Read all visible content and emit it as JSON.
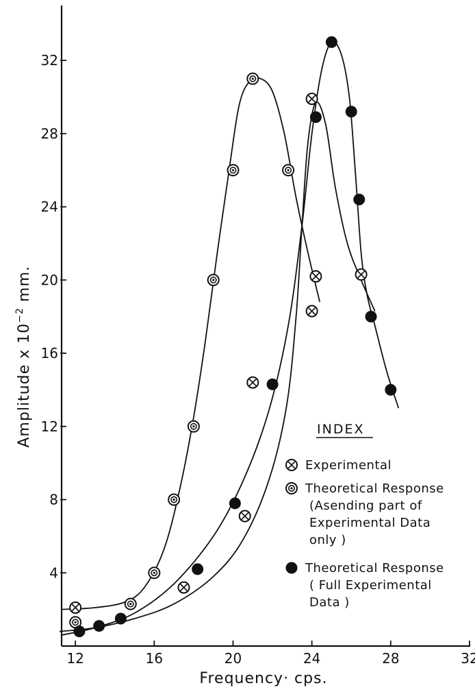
{
  "chart_data": {
    "type": "scatter",
    "title": "",
    "xlabel": "Frequency· cps.",
    "ylabel": "Amplitude x 10",
    "ylabel_exponent": "−2",
    "ylabel_unit": " mm.",
    "xlim": [
      11.3,
      32
    ],
    "ylim": [
      0,
      35
    ],
    "xticks": [
      12,
      16,
      20,
      24,
      28,
      32
    ],
    "yticks": [
      4,
      8,
      12,
      16,
      20,
      24,
      28,
      32
    ],
    "grid": false,
    "legend_position": "right",
    "legend_title": "INDEX",
    "series": [
      {
        "name": "Experimental",
        "marker": "circle-cross",
        "points": [
          [
            12.0,
            2.1
          ],
          [
            17.5,
            3.2
          ],
          [
            20.6,
            7.1
          ],
          [
            21.0,
            14.4
          ],
          [
            24.0,
            18.3
          ],
          [
            24.0,
            29.9
          ],
          [
            24.2,
            20.2
          ],
          [
            26.5,
            20.3
          ]
        ],
        "curve": [
          [
            11.2,
            0.8
          ],
          [
            13.0,
            1.0
          ],
          [
            15.0,
            1.5
          ],
          [
            17.0,
            2.3
          ],
          [
            19.0,
            3.8
          ],
          [
            20.5,
            5.8
          ],
          [
            21.8,
            9.0
          ],
          [
            22.7,
            13.0
          ],
          [
            23.2,
            18.0
          ],
          [
            23.5,
            23.0
          ],
          [
            23.8,
            27.5
          ],
          [
            24.2,
            29.7
          ],
          [
            24.7,
            28.5
          ],
          [
            25.2,
            25.0
          ],
          [
            25.8,
            22.0
          ],
          [
            26.5,
            20.0
          ],
          [
            27.2,
            18.3
          ]
        ]
      },
      {
        "name": "Theoretical Response",
        "note": "(Asending part of Experimental Data only )",
        "marker": "circle-dot",
        "points": [
          [
            12.0,
            1.3
          ],
          [
            14.8,
            2.3
          ],
          [
            16.0,
            4.0
          ],
          [
            17.0,
            8.0
          ],
          [
            18.0,
            12.0
          ],
          [
            19.0,
            20.0
          ],
          [
            20.0,
            26.0
          ],
          [
            21.0,
            31.0
          ],
          [
            22.8,
            26.0
          ]
        ],
        "curve": [
          [
            11.3,
            2.0
          ],
          [
            13.0,
            2.1
          ],
          [
            14.5,
            2.4
          ],
          [
            15.5,
            3.2
          ],
          [
            16.5,
            5.3
          ],
          [
            17.3,
            8.6
          ],
          [
            18.0,
            12.5
          ],
          [
            18.6,
            16.7
          ],
          [
            19.2,
            21.5
          ],
          [
            19.8,
            26.0
          ],
          [
            20.3,
            29.5
          ],
          [
            20.8,
            30.8
          ],
          [
            21.4,
            31.0
          ],
          [
            22.0,
            30.3
          ],
          [
            22.6,
            28.0
          ],
          [
            23.2,
            24.5
          ],
          [
            23.8,
            21.5
          ],
          [
            24.4,
            18.8
          ]
        ]
      },
      {
        "name": "Theoretical Response",
        "note": "( Full Experimental Data )",
        "marker": "filled-circle",
        "points": [
          [
            12.2,
            0.8
          ],
          [
            13.2,
            1.1
          ],
          [
            14.3,
            1.5
          ],
          [
            18.2,
            4.2
          ],
          [
            20.1,
            7.8
          ],
          [
            22.0,
            14.3
          ],
          [
            24.2,
            28.9
          ],
          [
            25.0,
            33.0
          ],
          [
            26.0,
            29.2
          ],
          [
            26.4,
            24.4
          ],
          [
            27.0,
            18.0
          ],
          [
            28.0,
            14.0
          ]
        ],
        "curve": [
          [
            11.3,
            0.6
          ],
          [
            13.0,
            1.0
          ],
          [
            15.0,
            1.8
          ],
          [
            17.0,
            3.4
          ],
          [
            19.0,
            6.0
          ],
          [
            20.5,
            9.0
          ],
          [
            21.8,
            12.8
          ],
          [
            22.8,
            17.5
          ],
          [
            23.5,
            23.0
          ],
          [
            24.0,
            28.0
          ],
          [
            24.5,
            31.5
          ],
          [
            25.0,
            33.0
          ],
          [
            25.5,
            32.3
          ],
          [
            25.9,
            30.0
          ],
          [
            26.2,
            26.0
          ],
          [
            26.5,
            21.5
          ],
          [
            26.8,
            19.2
          ],
          [
            27.2,
            17.5
          ],
          [
            27.8,
            15.0
          ],
          [
            28.4,
            13.0
          ]
        ]
      }
    ]
  }
}
